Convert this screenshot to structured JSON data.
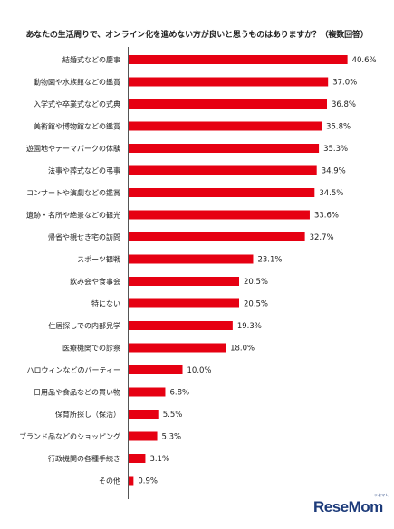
{
  "chart_data": {
    "type": "bar",
    "orientation": "horizontal",
    "title": "あなたの生活周りで、オンライン化を進めない方が良いと思うものはありますか？（複数回答）",
    "categories": [
      "結婚式などの慶事",
      "動物園や水族館などの鑑賞",
      "入学式や卒業式などの式典",
      "美術館や博物館などの鑑賞",
      "遊園地やテーマパークの体験",
      "法事や葬式などの弔事",
      "コンサートや演劇などの鑑賞",
      "遺跡・名所や絶景などの観光",
      "帰省や親せき宅の訪問",
      "スポーツ観戦",
      "飲み会や食事会",
      "特にない",
      "住居探しでの内部見学",
      "医療機関での診察",
      "ハロウィンなどのパーティー",
      "日用品や食品などの買い物",
      "保育所探し（保活）",
      "ブランド品などのショッピング",
      "行政機関の各種手続き",
      "その他"
    ],
    "values": [
      40.6,
      37.0,
      36.8,
      35.8,
      35.3,
      34.9,
      34.5,
      33.6,
      32.7,
      23.1,
      20.5,
      20.5,
      19.3,
      18.0,
      10.0,
      6.8,
      5.5,
      5.3,
      3.1,
      0.9
    ],
    "value_labels": [
      "40.6%",
      "37.0%",
      "36.8%",
      "35.8%",
      "35.3%",
      "34.9%",
      "34.5%",
      "33.6%",
      "32.7%",
      "23.1%",
      "20.5%",
      "20.5%",
      "19.3%",
      "18.0%",
      "10.0%",
      "6.8%",
      "5.5%",
      "5.3%",
      "3.1%",
      "0.9%"
    ],
    "bar_color": "#e60012",
    "xlim": [
      0,
      41
    ],
    "grid": false,
    "legend": "none"
  },
  "brand": {
    "name": "ReseMom",
    "kana": "リセマム",
    "color": "#1d3b7a"
  }
}
